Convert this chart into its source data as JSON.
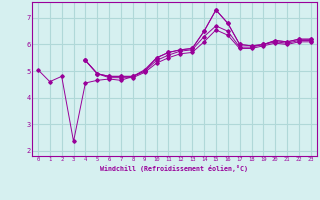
{
  "xlabel": "Windchill (Refroidissement éolien,°C)",
  "bg_color": "#d6f0f0",
  "line_color": "#990099",
  "grid_color": "#b0d8d8",
  "xlim": [
    -0.5,
    23.5
  ],
  "ylim": [
    1.8,
    7.6
  ],
  "yticks": [
    2,
    3,
    4,
    5,
    6,
    7
  ],
  "xticks": [
    0,
    1,
    2,
    3,
    4,
    5,
    6,
    7,
    8,
    9,
    10,
    11,
    12,
    13,
    14,
    15,
    16,
    17,
    18,
    19,
    20,
    21,
    22,
    23
  ],
  "series": [
    [
      5.05,
      4.6,
      4.8,
      2.35,
      4.55,
      4.65,
      4.7,
      4.65,
      4.8,
      5.05,
      5.5,
      5.7,
      5.8,
      5.85,
      6.5,
      7.3,
      6.8,
      6.0,
      5.95,
      6.0,
      6.15,
      6.1,
      6.2,
      6.2
    ],
    [
      null,
      null,
      null,
      null,
      5.4,
      4.9,
      4.8,
      4.8,
      4.8,
      5.0,
      5.5,
      5.7,
      5.8,
      5.85,
      6.5,
      7.3,
      6.8,
      6.0,
      5.95,
      6.0,
      6.15,
      6.1,
      6.2,
      6.2
    ],
    [
      null,
      null,
      null,
      null,
      5.4,
      4.9,
      4.8,
      4.8,
      4.8,
      5.0,
      5.4,
      5.6,
      5.75,
      5.8,
      6.3,
      6.7,
      6.5,
      5.9,
      5.9,
      6.0,
      6.1,
      6.05,
      6.15,
      6.15
    ],
    [
      null,
      null,
      null,
      null,
      5.4,
      4.9,
      4.75,
      4.75,
      4.75,
      4.95,
      5.3,
      5.5,
      5.65,
      5.7,
      6.1,
      6.55,
      6.35,
      5.85,
      5.85,
      5.95,
      6.05,
      6.0,
      6.1,
      6.1
    ]
  ]
}
